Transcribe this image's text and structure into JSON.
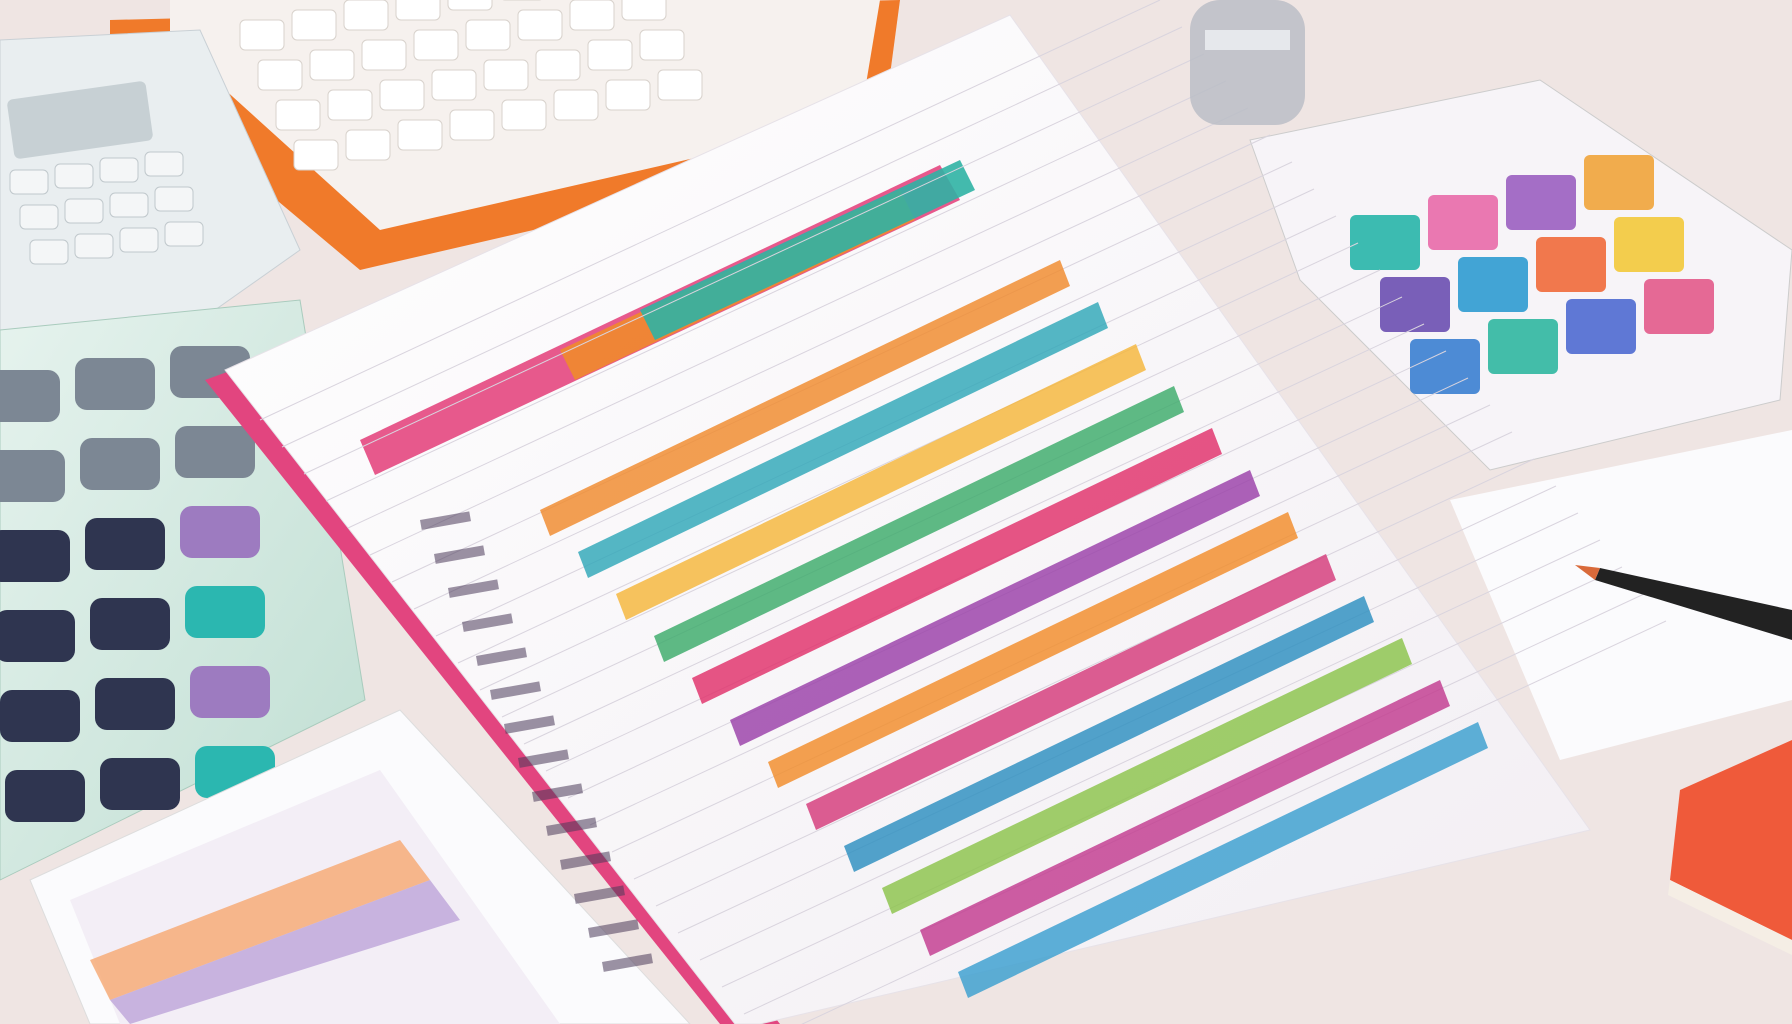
{
  "colors": {
    "desk": "#efe5e3",
    "paper": "#fbf9fa",
    "binder": "#e2457f",
    "calculator_body": "#d9ede4",
    "calculator_key_dark": "#2f3550",
    "calculator_key_teal": "#2bb7b0",
    "calculator_key_purple": "#9d7bc0",
    "top_device": "#f07a2a",
    "pen": "#222222",
    "book": "#ef5a3a"
  },
  "bands": [
    {
      "color": "#f08a2c"
    },
    {
      "color": "#2fa7b8"
    },
    {
      "color": "#f5b63b"
    },
    {
      "color": "#3cab6a"
    },
    {
      "color": "#e0306a"
    },
    {
      "color": "#9a3fa8"
    },
    {
      "color": "#f28c2a"
    },
    {
      "color": "#d43a7a"
    },
    {
      "color": "#2c8fc0"
    },
    {
      "color": "#8bc34a"
    },
    {
      "color": "#c23b8f"
    },
    {
      "color": "#3a9fd0"
    }
  ],
  "sticky_cubes": [
    {
      "color": "#27b5a8"
    },
    {
      "color": "#e86aa8"
    },
    {
      "color": "#9a5fc0"
    },
    {
      "color": "#f0a43a"
    },
    {
      "color": "#6a4fb0"
    },
    {
      "color": "#2e9bd0"
    },
    {
      "color": "#ef6a3a"
    },
    {
      "color": "#f2c93a"
    },
    {
      "color": "#3a7fd0"
    },
    {
      "color": "#2fb7a0"
    },
    {
      "color": "#4e6ad0"
    },
    {
      "color": "#e25a8a"
    }
  ]
}
